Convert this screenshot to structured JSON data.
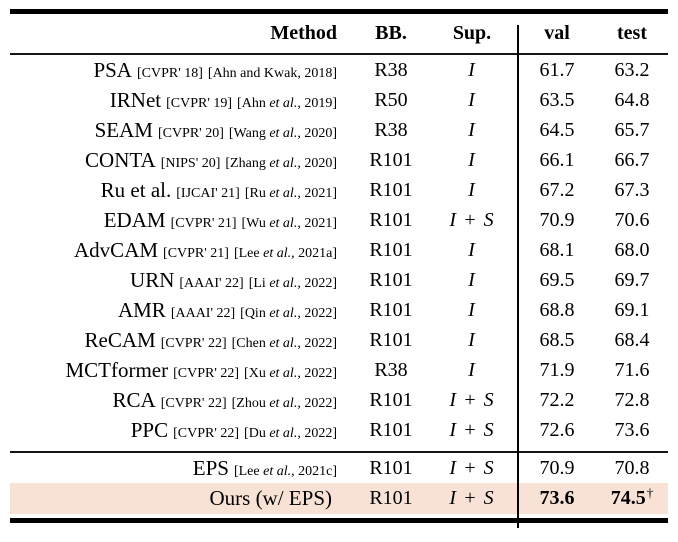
{
  "table": {
    "header": {
      "method": "Method",
      "bb": "BB.",
      "sup": "Sup.",
      "val": "val",
      "test": "test"
    },
    "highlight_color": "#f8e2d6",
    "rows": [
      {
        "method": "PSA",
        "venue": "[CVPR' 18]",
        "cite_pre": "[Ahn and Kwak, 2018]",
        "cite_etal": "",
        "cite_post": "",
        "bb": "R38",
        "sup": "I",
        "val": "61.7",
        "test": "63.2",
        "section": "main"
      },
      {
        "method": "IRNet",
        "venue": "[CVPR' 19]",
        "cite_pre": "[Ahn ",
        "cite_etal": "et al.",
        "cite_post": ", 2019]",
        "bb": "R50",
        "sup": "I",
        "val": "63.5",
        "test": "64.8",
        "section": "main"
      },
      {
        "method": "SEAM",
        "venue": "[CVPR' 20]",
        "cite_pre": "[Wang ",
        "cite_etal": "et al.",
        "cite_post": ", 2020]",
        "bb": "R38",
        "sup": "I",
        "val": "64.5",
        "test": "65.7",
        "section": "main"
      },
      {
        "method": "CONTA",
        "venue": "[NIPS' 20]",
        "cite_pre": "[Zhang ",
        "cite_etal": "et al.",
        "cite_post": ", 2020]",
        "bb": "R101",
        "sup": "I",
        "val": "66.1",
        "test": "66.7",
        "section": "main"
      },
      {
        "method": "Ru et al.",
        "venue": "[IJCAI' 21]",
        "cite_pre": "[Ru ",
        "cite_etal": "et al.",
        "cite_post": ", 2021]",
        "bb": "R101",
        "sup": "I",
        "val": "67.2",
        "test": "67.3",
        "section": "main"
      },
      {
        "method": "EDAM",
        "venue": "[CVPR' 21]",
        "cite_pre": "[Wu ",
        "cite_etal": "et al.",
        "cite_post": ", 2021]",
        "bb": "R101",
        "sup": "I + S",
        "val": "70.9",
        "test": "70.6",
        "section": "main"
      },
      {
        "method": "AdvCAM",
        "venue": "[CVPR' 21]",
        "cite_pre": "[Lee ",
        "cite_etal": "et al.",
        "cite_post": ", 2021a]",
        "bb": "R101",
        "sup": "I",
        "val": "68.1",
        "test": "68.0",
        "section": "main"
      },
      {
        "method": "URN",
        "venue": "[AAAI' 22]",
        "cite_pre": "[Li ",
        "cite_etal": "et al.",
        "cite_post": ", 2022]",
        "bb": "R101",
        "sup": "I",
        "val": "69.5",
        "test": "69.7",
        "section": "main"
      },
      {
        "method": "AMR",
        "venue": "[AAAI' 22]",
        "cite_pre": "[Qin ",
        "cite_etal": "et al.",
        "cite_post": ", 2022]",
        "bb": "R101",
        "sup": "I",
        "val": "68.8",
        "test": "69.1",
        "section": "main"
      },
      {
        "method": "ReCAM",
        "venue": "[CVPR' 22]",
        "cite_pre": "[Chen ",
        "cite_etal": "et al.",
        "cite_post": ", 2022]",
        "bb": "R101",
        "sup": "I",
        "val": "68.5",
        "test": "68.4",
        "section": "main"
      },
      {
        "method": "MCTformer",
        "venue": "[CVPR' 22]",
        "cite_pre": "[Xu ",
        "cite_etal": "et al.",
        "cite_post": ", 2022]",
        "bb": "R38",
        "sup": "I",
        "val": "71.9",
        "test": "71.6",
        "section": "main"
      },
      {
        "method": "RCA",
        "venue": "[CVPR' 22]",
        "cite_pre": "[Zhou ",
        "cite_etal": "et al.",
        "cite_post": ", 2022]",
        "bb": "R101",
        "sup": "I + S",
        "val": "72.2",
        "test": "72.8",
        "section": "main"
      },
      {
        "method": "PPC",
        "venue": "[CVPR' 22]",
        "cite_pre": "[Du ",
        "cite_etal": "et al.",
        "cite_post": ", 2022]",
        "bb": "R101",
        "sup": "I + S",
        "val": "72.6",
        "test": "73.6",
        "section": "main"
      },
      {
        "method": "EPS",
        "venue": "",
        "cite_pre": "[Lee ",
        "cite_etal": "et al.",
        "cite_post": ", 2021c]",
        "bb": "R101",
        "sup": "I + S",
        "val": "70.9",
        "test": "70.8",
        "section": "bottom"
      },
      {
        "method": "Ours (w/ EPS)",
        "venue": "",
        "cite_pre": "",
        "cite_etal": "",
        "cite_post": "",
        "bb": "R101",
        "sup": "I + S",
        "val": "73.6",
        "test": "74.5",
        "test_sup": "†",
        "bold": true,
        "highlight": true,
        "section": "bottom"
      }
    ]
  }
}
